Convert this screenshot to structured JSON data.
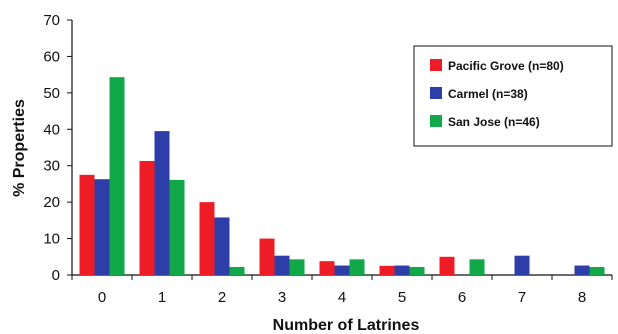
{
  "chart_data": {
    "type": "bar",
    "xlabel": "Number of Latrines",
    "ylabel": "% Properties",
    "ylim": [
      0,
      70
    ],
    "yticks": [
      0,
      10,
      20,
      30,
      40,
      50,
      60,
      70
    ],
    "categories": [
      "0",
      "1",
      "2",
      "3",
      "4",
      "5",
      "6",
      "7",
      "8"
    ],
    "grid": false,
    "legend_position": "top-right",
    "series": [
      {
        "name": "Pacific Grove (n=80)",
        "color": "#ee1c24",
        "values": [
          27.5,
          31.3,
          20.0,
          10.0,
          3.8,
          2.5,
          5.0,
          0,
          0
        ]
      },
      {
        "name": "Carmel (n=38)",
        "color": "#2e3ea8",
        "values": [
          26.3,
          39.5,
          15.8,
          5.3,
          2.6,
          2.6,
          0,
          5.3,
          2.6
        ]
      },
      {
        "name": "San Jose (n=46)",
        "color": "#11a84a",
        "values": [
          54.3,
          26.1,
          2.2,
          4.3,
          4.3,
          2.2,
          4.3,
          0,
          2.2
        ]
      }
    ]
  }
}
